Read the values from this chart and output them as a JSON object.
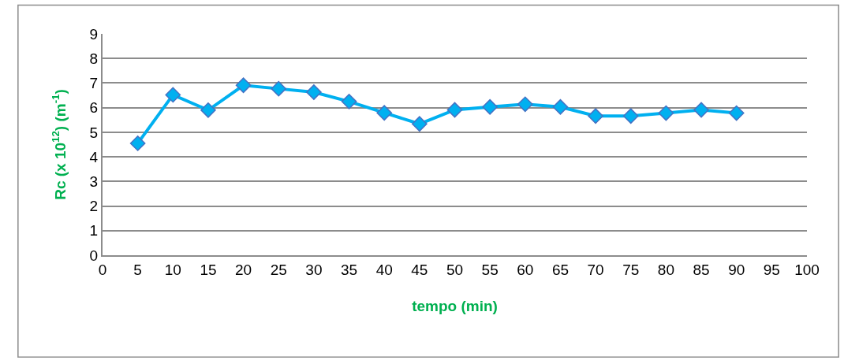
{
  "chart_data": {
    "type": "line",
    "xlabel": "tempo (min)",
    "ylabel": "Rc (x 10$^{12}$) (m$^{-1}$)",
    "x": [
      5,
      10,
      15,
      20,
      25,
      30,
      35,
      40,
      45,
      50,
      55,
      60,
      65,
      70,
      75,
      80,
      85,
      90
    ],
    "series": [
      {
        "color": "#00b0f0",
        "values": [
          4.55,
          6.52,
          5.9,
          6.91,
          6.77,
          6.63,
          6.25,
          5.79,
          5.34,
          5.91,
          6.03,
          6.14,
          6.03,
          5.66,
          5.66,
          5.78,
          5.91,
          5.78
        ]
      }
    ],
    "xlim": [
      0,
      100
    ],
    "xticks": [
      0,
      5,
      10,
      15,
      20,
      25,
      30,
      35,
      40,
      45,
      50,
      55,
      60,
      65,
      70,
      75,
      80,
      85,
      90,
      95,
      100
    ],
    "ylim": [
      0,
      9
    ],
    "yticks": [
      0,
      1,
      2,
      3,
      4,
      5,
      6,
      7,
      8,
      9
    ],
    "grid": "y",
    "legend": false,
    "marker": "diamond",
    "line_style": "solid"
  }
}
